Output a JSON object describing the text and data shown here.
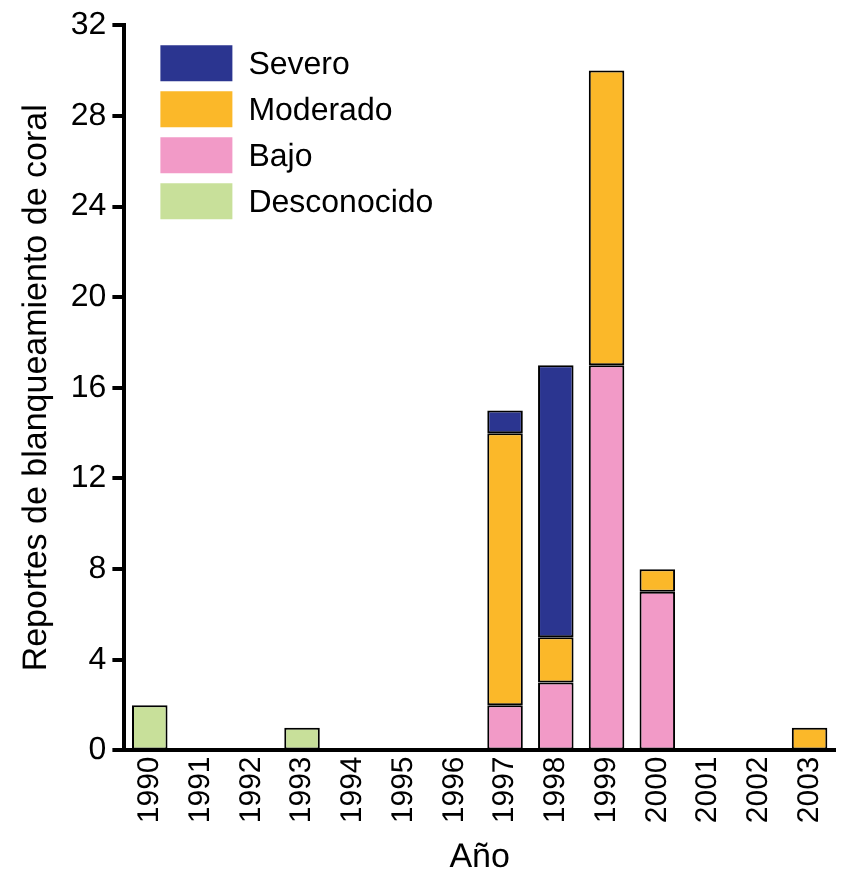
{
  "chart_data": {
    "type": "bar",
    "xlabel": "Año",
    "ylabel": "Reportes de blanqueamiento de coral",
    "categories": [
      "1990",
      "1991",
      "1992",
      "1993",
      "1994",
      "1995",
      "1996",
      "1997",
      "1998",
      "1999",
      "2000",
      "2001",
      "2002",
      "2003"
    ],
    "series": [
      {
        "name": "Desconocido",
        "color": "#c8e09a",
        "values": [
          2,
          0,
          0,
          1,
          0,
          0,
          0,
          0,
          0,
          0,
          0,
          0,
          0,
          0
        ]
      },
      {
        "name": "Bajo",
        "color": "#f29ac7",
        "values": [
          0,
          0,
          0,
          0,
          0,
          0,
          0,
          2,
          3,
          17,
          7,
          0,
          0,
          0
        ]
      },
      {
        "name": "Moderado",
        "color": "#fbb829",
        "values": [
          0,
          0,
          0,
          0,
          0,
          0,
          0,
          12,
          2,
          13,
          1,
          0,
          0,
          1
        ]
      },
      {
        "name": "Severo",
        "color": "#2b3590",
        "values": [
          0,
          0,
          0,
          0,
          0,
          0,
          0,
          1,
          12,
          0,
          0,
          0,
          0,
          0
        ]
      }
    ],
    "stacked": true,
    "ylim": [
      0,
      32
    ],
    "yticks": [
      0,
      4,
      8,
      12,
      16,
      20,
      24,
      28,
      32
    ],
    "grid": false,
    "legend": "top left"
  }
}
